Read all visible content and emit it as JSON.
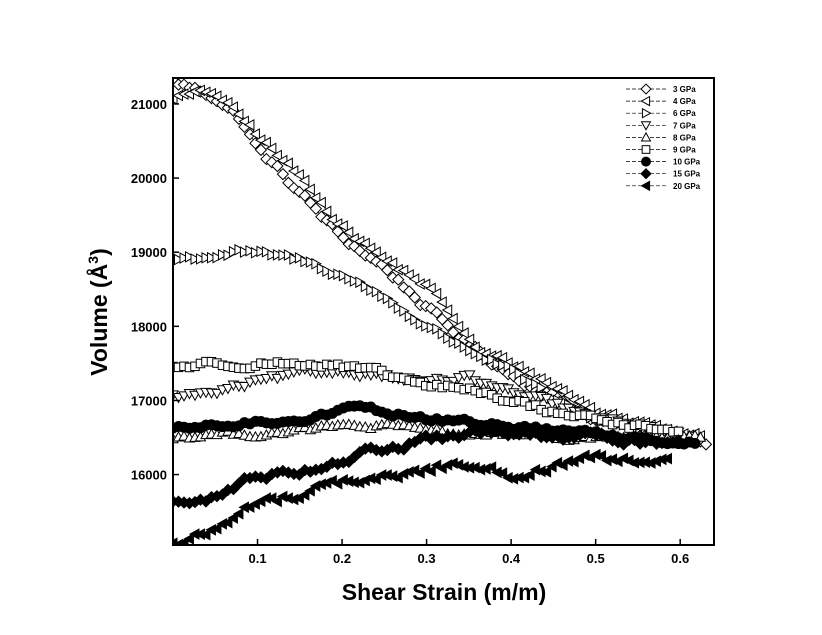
{
  "chart_data": {
    "type": "scatter",
    "title": "",
    "xlabel": "Shear Strain (m/m)",
    "ylabel_main": "Volume (Å",
    "ylabel_sup": "3",
    "ylabel_close": ")",
    "xlim": [
      0.0,
      0.64
    ],
    "ylim": [
      15050,
      21350
    ],
    "xticks": [
      {
        "value": 0.1,
        "label": "0.1"
      },
      {
        "value": 0.2,
        "label": "0.2"
      },
      {
        "value": 0.3,
        "label": "0.3"
      },
      {
        "value": 0.4,
        "label": "0.4"
      },
      {
        "value": 0.5,
        "label": "0.5"
      },
      {
        "value": 0.6,
        "label": "0.6"
      }
    ],
    "yticks": [
      {
        "value": 16000,
        "label": "16000"
      },
      {
        "value": 17000,
        "label": "17000"
      },
      {
        "value": 18000,
        "label": "18000"
      },
      {
        "value": 19000,
        "label": "19000"
      },
      {
        "value": 20000,
        "label": "20000"
      },
      {
        "value": 21000,
        "label": "21000"
      }
    ],
    "legend_position": "top-right",
    "series": [
      {
        "name": "3 GPa",
        "marker": "diamond",
        "filled": false,
        "x_end": 0.635,
        "noise": 40,
        "points": [
          [
            0.0,
            21300
          ],
          [
            0.05,
            21100
          ],
          [
            0.08,
            20800
          ],
          [
            0.1,
            20400
          ],
          [
            0.15,
            19800
          ],
          [
            0.2,
            19200
          ],
          [
            0.25,
            18800
          ],
          [
            0.3,
            18250
          ],
          [
            0.35,
            17750
          ],
          [
            0.4,
            17350
          ],
          [
            0.45,
            17050
          ],
          [
            0.5,
            16750
          ],
          [
            0.55,
            16600
          ],
          [
            0.6,
            16500
          ],
          [
            0.635,
            16450
          ]
        ]
      },
      {
        "name": "4 GPa",
        "marker": "tri-left",
        "filled": false,
        "x_end": 0.625,
        "noise": 40,
        "points": [
          [
            0.0,
            21100
          ],
          [
            0.05,
            21150
          ],
          [
            0.09,
            20700
          ],
          [
            0.12,
            20350
          ],
          [
            0.16,
            19900
          ],
          [
            0.2,
            19350
          ],
          [
            0.25,
            18900
          ],
          [
            0.3,
            18550
          ],
          [
            0.33,
            18150
          ],
          [
            0.36,
            17650
          ],
          [
            0.4,
            17500
          ],
          [
            0.45,
            17200
          ],
          [
            0.5,
            16850
          ],
          [
            0.55,
            16700
          ],
          [
            0.6,
            16600
          ],
          [
            0.625,
            16550
          ]
        ]
      },
      {
        "name": "6 GPa",
        "marker": "tri-right",
        "filled": false,
        "x_end": 0.6,
        "noise": 35,
        "points": [
          [
            0.0,
            18900
          ],
          [
            0.05,
            18950
          ],
          [
            0.08,
            19000
          ],
          [
            0.12,
            18950
          ],
          [
            0.15,
            18900
          ],
          [
            0.2,
            18700
          ],
          [
            0.25,
            18400
          ],
          [
            0.3,
            18000
          ],
          [
            0.35,
            17700
          ],
          [
            0.4,
            17400
          ],
          [
            0.45,
            17000
          ],
          [
            0.5,
            16750
          ],
          [
            0.55,
            16650
          ],
          [
            0.6,
            16550
          ]
        ]
      },
      {
        "name": "7 GPa",
        "marker": "tri-down",
        "filled": false,
        "x_end": 0.6,
        "noise": 35,
        "points": [
          [
            0.0,
            17050
          ],
          [
            0.05,
            17100
          ],
          [
            0.1,
            17250
          ],
          [
            0.15,
            17350
          ],
          [
            0.2,
            17400
          ],
          [
            0.25,
            17350
          ],
          [
            0.3,
            17250
          ],
          [
            0.35,
            17300
          ],
          [
            0.4,
            17100
          ],
          [
            0.45,
            16950
          ],
          [
            0.5,
            16750
          ],
          [
            0.55,
            16650
          ],
          [
            0.6,
            16550
          ]
        ]
      },
      {
        "name": "8 GPa",
        "marker": "tri-up",
        "filled": false,
        "x_end": 0.625,
        "noise": 30,
        "points": [
          [
            0.0,
            16500
          ],
          [
            0.05,
            16550
          ],
          [
            0.1,
            16550
          ],
          [
            0.15,
            16600
          ],
          [
            0.2,
            16650
          ],
          [
            0.25,
            16650
          ],
          [
            0.3,
            16600
          ],
          [
            0.35,
            16550
          ],
          [
            0.4,
            16550
          ],
          [
            0.45,
            16500
          ],
          [
            0.5,
            16500
          ],
          [
            0.55,
            16500
          ],
          [
            0.6,
            16500
          ],
          [
            0.625,
            16500
          ]
        ]
      },
      {
        "name": "9 GPa",
        "marker": "square",
        "filled": false,
        "x_end": 0.6,
        "noise": 35,
        "points": [
          [
            0.0,
            17450
          ],
          [
            0.05,
            17500
          ],
          [
            0.1,
            17500
          ],
          [
            0.15,
            17500
          ],
          [
            0.2,
            17450
          ],
          [
            0.25,
            17350
          ],
          [
            0.3,
            17200
          ],
          [
            0.35,
            17150
          ],
          [
            0.4,
            17000
          ],
          [
            0.45,
            16850
          ],
          [
            0.5,
            16750
          ],
          [
            0.55,
            16650
          ],
          [
            0.6,
            16550
          ]
        ]
      },
      {
        "name": "10 GPa",
        "marker": "circle",
        "filled": true,
        "x_end": 0.62,
        "noise": 30,
        "points": [
          [
            0.0,
            16600
          ],
          [
            0.05,
            16650
          ],
          [
            0.1,
            16700
          ],
          [
            0.15,
            16750
          ],
          [
            0.2,
            16850
          ],
          [
            0.21,
            16950
          ],
          [
            0.25,
            16850
          ],
          [
            0.3,
            16750
          ],
          [
            0.35,
            16700
          ],
          [
            0.4,
            16650
          ],
          [
            0.45,
            16600
          ],
          [
            0.5,
            16550
          ],
          [
            0.55,
            16500
          ],
          [
            0.6,
            16450
          ],
          [
            0.62,
            16450
          ]
        ]
      },
      {
        "name": "15 GPa",
        "marker": "diamond",
        "filled": true,
        "x_end": 0.6,
        "noise": 45,
        "points": [
          [
            0.0,
            15650
          ],
          [
            0.03,
            15600
          ],
          [
            0.06,
            15750
          ],
          [
            0.1,
            16000
          ],
          [
            0.15,
            16050
          ],
          [
            0.2,
            16200
          ],
          [
            0.25,
            16350
          ],
          [
            0.3,
            16450
          ],
          [
            0.35,
            16550
          ],
          [
            0.4,
            16550
          ],
          [
            0.45,
            16500
          ],
          [
            0.5,
            16500
          ],
          [
            0.55,
            16450
          ],
          [
            0.6,
            16450
          ]
        ]
      },
      {
        "name": "20 GPa",
        "marker": "tri-left",
        "filled": true,
        "x_end": 0.59,
        "noise": 50,
        "points": [
          [
            0.0,
            15050
          ],
          [
            0.05,
            15250
          ],
          [
            0.08,
            15550
          ],
          [
            0.12,
            15650
          ],
          [
            0.18,
            15850
          ],
          [
            0.23,
            15950
          ],
          [
            0.28,
            16000
          ],
          [
            0.33,
            16150
          ],
          [
            0.37,
            16100
          ],
          [
            0.4,
            16000
          ],
          [
            0.45,
            16100
          ],
          [
            0.5,
            16200
          ],
          [
            0.55,
            16150
          ],
          [
            0.59,
            16150
          ]
        ]
      }
    ]
  }
}
